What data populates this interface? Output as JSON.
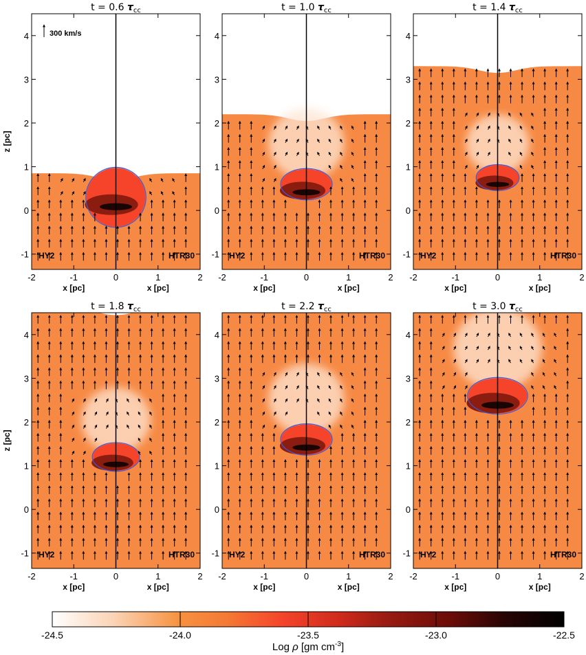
{
  "chart_data": {
    "type": "heatmap",
    "xlabel": "x [pc]",
    "ylabel": "z [pc]",
    "xlim": [
      -2,
      2
    ],
    "ylim": [
      -1.35,
      4.5
    ],
    "xticks": [
      "-2",
      "-1",
      "0",
      "1",
      "2"
    ],
    "yticks": [
      "-1",
      "0",
      "1",
      "2",
      "3",
      "4"
    ],
    "left_label": "HY2",
    "right_label": "HTR30",
    "velocity_scale": "300 km/s",
    "panels": [
      {
        "title_prefix": "t = 0.6 ",
        "title_symbol": "τ",
        "title_sub": "cc",
        "time": 0.6,
        "shock_z": 0.85,
        "cloud_z": 0.3,
        "cloud_r": 0.7
      },
      {
        "title_prefix": "t = 1.0 ",
        "title_symbol": "τ",
        "title_sub": "cc",
        "time": 1.0,
        "shock_z": 2.2,
        "cloud_z": 0.6,
        "cloud_r": 0.6
      },
      {
        "title_prefix": "t = 1.4 ",
        "title_symbol": "τ",
        "title_sub": "cc",
        "time": 1.4,
        "shock_z": 3.3,
        "cloud_z": 0.75,
        "cloud_r": 0.5
      },
      {
        "title_prefix": "t = 1.8 ",
        "title_symbol": "τ",
        "title_sub": "cc",
        "time": 1.8,
        "shock_z": 4.6,
        "cloud_z": 1.2,
        "cloud_r": 0.55
      },
      {
        "title_prefix": "t = 2.2 ",
        "title_symbol": "τ",
        "title_sub": "cc",
        "time": 2.2,
        "shock_z": 4.6,
        "cloud_z": 1.6,
        "cloud_r": 0.6
      },
      {
        "title_prefix": "t = 3.0 ",
        "title_symbol": "τ",
        "title_sub": "cc",
        "time": 3.0,
        "shock_z": 4.6,
        "cloud_z": 2.6,
        "cloud_r": 0.7
      }
    ],
    "colorbar": {
      "label_prefix": "Log ",
      "label_symbol": "ρ",
      "label_units": " [gm cm",
      "label_exp": "-3",
      "label_close": "]",
      "range": [
        -24.5,
        -22.5
      ],
      "ticks": [
        "-24.5",
        "-24.0",
        "-23.5",
        "-23.0",
        "-22.5"
      ],
      "tick_values": [
        -24.5,
        -24.0,
        -23.5,
        -23.0,
        -22.5
      ]
    },
    "colors": {
      "ambient": "#f68a45",
      "cloud": "#f5442a",
      "dense": "#8b1d10",
      "densest": "#1a0505",
      "contour": "#3a5adc"
    }
  }
}
